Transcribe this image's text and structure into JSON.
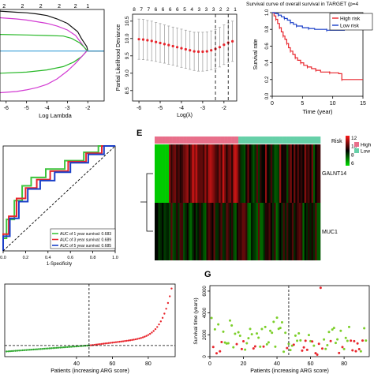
{
  "figure": {
    "panel_letters": {
      "e": "E",
      "g": "G"
    }
  },
  "chart_data": [
    {
      "id": "panel-a-lasso-coefficients",
      "type": "line",
      "xlabel": "Log Lambda",
      "ylabel": "",
      "xlim": [
        -6.3,
        -1.2
      ],
      "ylim": [
        -0.9,
        0.75
      ],
      "xticks": [
        "-6",
        "-5",
        "-4",
        "-3",
        "-2"
      ],
      "top_ticks": [
        "2",
        "2",
        "2",
        "2",
        "2",
        "1"
      ],
      "series": [
        {
          "color": "#111111",
          "x": [
            -6.3,
            -5.5,
            -5,
            -4.5,
            -4,
            -3.5,
            -3,
            -2.5,
            -2.3,
            -2.05,
            -2.0,
            -1.2
          ],
          "y": [
            0.72,
            0.7,
            0.69,
            0.67,
            0.64,
            0.58,
            0.5,
            0.35,
            0.22,
            0.08,
            0.0,
            0.0
          ]
        },
        {
          "color": "#d23ad2",
          "x": [
            -6.3,
            -5.5,
            -5,
            -4.5,
            -4,
            -3.5,
            -3,
            -2.6,
            -2.35,
            -2.1,
            -2.0
          ],
          "y": [
            0.6,
            0.58,
            0.56,
            0.53,
            0.5,
            0.45,
            0.38,
            0.28,
            0.16,
            0.03,
            0.0
          ]
        },
        {
          "color": "#28b828",
          "x": [
            -6.3,
            -5,
            -4,
            -3.2,
            -2.8,
            -2.4,
            -2.15,
            -2.02
          ],
          "y": [
            0.3,
            0.29,
            0.28,
            0.27,
            0.23,
            0.15,
            0.06,
            0.0
          ]
        },
        {
          "color": "#3aa0d8",
          "x": [
            -6.3,
            -1.2
          ],
          "y": [
            0.0,
            0.0
          ]
        },
        {
          "color": "#28b828",
          "x": [
            -6.3,
            -5,
            -4,
            -3.2,
            -2.7,
            -2.3,
            -2.05
          ],
          "y": [
            -0.4,
            -0.38,
            -0.34,
            -0.28,
            -0.2,
            -0.1,
            0.0
          ]
        },
        {
          "color": "#d23ad2",
          "x": [
            -6.3,
            -5.5,
            -5,
            -4.5,
            -4,
            -3.5,
            -3,
            -2.6,
            -2.3,
            -2.05
          ],
          "y": [
            -0.75,
            -0.73,
            -0.7,
            -0.66,
            -0.6,
            -0.5,
            -0.36,
            -0.22,
            -0.1,
            0.0
          ]
        }
      ]
    },
    {
      "id": "panel-b-partial-likelihood",
      "type": "line",
      "xlabel": "Log(λ)",
      "ylabel": "Partial Likelihood Deviance",
      "xlim": [
        -6.3,
        -1.4
      ],
      "ylim": [
        8.2,
        10.7
      ],
      "yticks": [
        "8.5",
        "9.0",
        "9.5",
        "10.0",
        "10.5"
      ],
      "xticks": [
        "-6",
        "-5",
        "-4",
        "-3",
        "-2"
      ],
      "top_ticks": [
        "8",
        "7",
        "7",
        "6",
        "6",
        "6",
        "6",
        "5",
        "4",
        "3",
        "3",
        "3",
        "2",
        "2",
        "1"
      ],
      "vlines": [
        -2.4,
        -1.8
      ],
      "x": [
        -6.0,
        -5.8,
        -5.6,
        -5.4,
        -5.2,
        -5.0,
        -4.8,
        -4.6,
        -4.4,
        -4.2,
        -4.0,
        -3.8,
        -3.6,
        -3.4,
        -3.2,
        -3.0,
        -2.8,
        -2.6,
        -2.4,
        -2.2,
        -2.0,
        -1.8,
        -1.6
      ],
      "y": [
        9.98,
        9.97,
        9.95,
        9.93,
        9.9,
        9.87,
        9.84,
        9.81,
        9.78,
        9.75,
        9.72,
        9.69,
        9.66,
        9.63,
        9.62,
        9.62,
        9.63,
        9.66,
        9.7,
        9.75,
        9.82,
        9.88,
        9.92
      ],
      "err": [
        0.58,
        0.58,
        0.57,
        0.57,
        0.56,
        0.56,
        0.55,
        0.55,
        0.55,
        0.55,
        0.55,
        0.55,
        0.55,
        0.55,
        0.56,
        0.56,
        0.56,
        0.56,
        0.56,
        0.57,
        0.57,
        0.57,
        0.58
      ]
    },
    {
      "id": "panel-c-survival-curve",
      "type": "line",
      "title": "Survival curve of overall survival in TARGET (p=4",
      "xlabel": "Time (year)",
      "ylabel": "Survival rate",
      "xlim": [
        0,
        15
      ],
      "ylim": [
        0,
        1
      ],
      "xticks": [
        "0",
        "5",
        "10",
        "15"
      ],
      "yticks": [
        "0.0",
        "0.2",
        "0.4",
        "0.6",
        "0.8",
        "1.0"
      ],
      "legend": [
        "High risk",
        "Low risk"
      ],
      "series": [
        {
          "name": "High risk",
          "color": "#e8252c",
          "x": [
            0,
            0.3,
            0.6,
            0.9,
            1.2,
            1.5,
            1.8,
            2.1,
            2.4,
            2.7,
            3.0,
            3.4,
            3.8,
            4.2,
            4.7,
            5.2,
            5.8,
            6.5,
            7.2,
            8.0,
            9.5,
            11.0,
            11.5,
            15.0
          ],
          "y": [
            1.0,
            0.96,
            0.92,
            0.87,
            0.82,
            0.77,
            0.72,
            0.68,
            0.63,
            0.58,
            0.54,
            0.5,
            0.46,
            0.43,
            0.4,
            0.37,
            0.35,
            0.33,
            0.31,
            0.29,
            0.28,
            0.27,
            0.2,
            0.2
          ]
        },
        {
          "name": "Low risk",
          "color": "#1a3fc8",
          "x": [
            0,
            0.5,
            1.0,
            1.5,
            2.0,
            2.5,
            3.0,
            3.5,
            4.0,
            5.0,
            6.0,
            7.0,
            9.0,
            12.0
          ],
          "y": [
            1.0,
            0.99,
            0.97,
            0.95,
            0.93,
            0.91,
            0.88,
            0.86,
            0.84,
            0.82,
            0.81,
            0.8,
            0.79,
            0.79
          ]
        }
      ]
    },
    {
      "id": "panel-d-roc",
      "type": "line",
      "xlabel": "1-Specificity",
      "ylabel": "",
      "xlim": [
        0,
        1
      ],
      "ylim": [
        0,
        1
      ],
      "xticks": [
        "0.0",
        "0.2",
        "0.4",
        "0.6",
        "0.8",
        "1.0"
      ],
      "legend": [
        "AUC of 1 year survival: 0.683",
        "AUC of 3 year survival: 0.689",
        "AUC of 5 year survival: 0.685"
      ],
      "series": [
        {
          "name": "AUC of 1 year survival: 0.683",
          "color": "#3cc43c",
          "x": [
            0,
            0,
            0.03,
            0.03,
            0.1,
            0.1,
            0.17,
            0.17,
            0.25,
            0.25,
            0.38,
            0.38,
            0.55,
            0.55,
            0.72,
            0.72,
            0.85,
            0.85,
            1.0
          ],
          "y": [
            0,
            0.12,
            0.12,
            0.3,
            0.3,
            0.48,
            0.48,
            0.62,
            0.62,
            0.7,
            0.7,
            0.78,
            0.78,
            0.86,
            0.86,
            0.94,
            0.94,
            1.0,
            1.0
          ]
        },
        {
          "name": "AUC of 3 year survival: 0.689",
          "color": "#e8252c",
          "x": [
            0,
            0,
            0.05,
            0.05,
            0.12,
            0.12,
            0.2,
            0.2,
            0.3,
            0.3,
            0.42,
            0.42,
            0.58,
            0.58,
            0.74,
            0.74,
            0.88,
            0.88,
            1.0
          ],
          "y": [
            0,
            0.16,
            0.16,
            0.33,
            0.33,
            0.5,
            0.5,
            0.6,
            0.6,
            0.68,
            0.68,
            0.76,
            0.76,
            0.85,
            0.85,
            0.93,
            0.93,
            1.0,
            1.0
          ]
        },
        {
          "name": "AUC of 5 year survival: 0.685",
          "color": "#1a3fc8",
          "x": [
            0,
            0,
            0.06,
            0.06,
            0.14,
            0.14,
            0.22,
            0.22,
            0.33,
            0.33,
            0.46,
            0.46,
            0.6,
            0.6,
            0.76,
            0.76,
            0.9,
            0.9,
            1.0
          ],
          "y": [
            0,
            0.14,
            0.14,
            0.31,
            0.31,
            0.47,
            0.47,
            0.59,
            0.59,
            0.67,
            0.67,
            0.75,
            0.75,
            0.84,
            0.84,
            0.92,
            0.92,
            1.0,
            1.0
          ]
        },
        {
          "name": "",
          "color": "#000000",
          "dashed": true,
          "x": [
            0,
            1
          ],
          "y": [
            0,
            1
          ]
        }
      ]
    },
    {
      "id": "panel-e-heatmap",
      "type": "heatmap",
      "rows": [
        "GALNT14",
        "MUC1"
      ],
      "annotation_label": "Risk",
      "risk_legend": [
        {
          "label": "High",
          "color": "#e86f8a"
        },
        {
          "label": "Low",
          "color": "#66d0a8"
        }
      ],
      "colorbar_ticks": [
        "12",
        "10",
        "8",
        "6"
      ],
      "colorbar_colors": [
        "#ff1a1a",
        "#000000",
        "#00e000"
      ],
      "high_fraction": 0.5,
      "columns": 93
    },
    {
      "id": "panel-f-risk-score",
      "type": "scatter",
      "xlabel": "Patients (increasing ARG score)",
      "ylabel": "",
      "xlim": [
        0,
        95
      ],
      "ylim": [
        0,
        6.5
      ],
      "xticks": [
        "40",
        "60",
        "80"
      ],
      "vline": 47,
      "hline": 1.0,
      "low_color": "#2fa82f",
      "high_color": "#e8252c",
      "n": 93
    },
    {
      "id": "panel-g-survival-time",
      "type": "scatter",
      "xlabel": "Patients (increasing ARG score)",
      "ylabel": "Survival time (years)",
      "xlim": [
        0,
        95
      ],
      "ylim": [
        0,
        6500
      ],
      "xticks": [
        "0",
        "20",
        "40",
        "60",
        "80"
      ],
      "yticks": [
        "0",
        "2000",
        "4000",
        "6000"
      ],
      "vline": 47,
      "legend_colors": {
        "alive": "#7ccf2a",
        "dead": "#e8252c"
      }
    }
  ]
}
